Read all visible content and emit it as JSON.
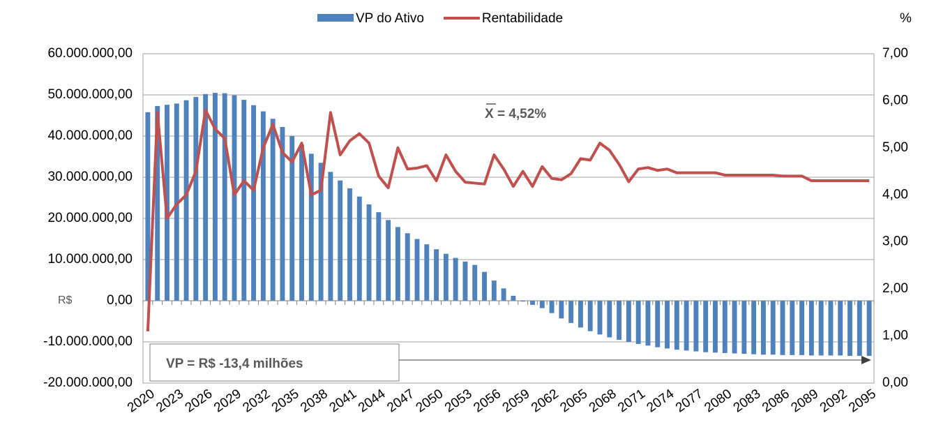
{
  "chart_data": {
    "type": "bar_line",
    "legend_position": "top",
    "y_axis_label": "R$",
    "y2_axis_label": "%",
    "annotations": [
      "X = 4,52%",
      "VP = R$ -13,4 milhões"
    ],
    "grid": true,
    "categories": [
      "2020",
      null,
      null,
      "2023",
      null,
      null,
      "2026",
      null,
      null,
      "2029",
      null,
      null,
      "2032",
      null,
      null,
      "2035",
      null,
      null,
      "2038",
      null,
      null,
      "2041",
      null,
      null,
      "2044",
      null,
      null,
      "2047",
      null,
      null,
      "2050",
      null,
      null,
      "2053",
      null,
      null,
      "2056",
      null,
      null,
      "2059",
      null,
      null,
      "2062",
      null,
      null,
      "2065",
      null,
      null,
      "2068",
      null,
      null,
      "2071",
      null,
      null,
      "2074",
      null,
      null,
      "2077",
      null,
      null,
      "2080",
      null,
      null,
      "2083",
      null,
      null,
      "2086",
      null,
      null,
      "2089",
      null,
      null,
      "2092",
      null,
      null,
      "2095"
    ],
    "ylim": [
      -20000000,
      60000000
    ],
    "yticks": [
      {
        "value": -20000000,
        "label": "-20.000.000,00"
      },
      {
        "value": -10000000,
        "label": "-10.000.000,00"
      },
      {
        "value": 0,
        "label": "0,00"
      },
      {
        "value": 10000000,
        "label": "10.000.000,00"
      },
      {
        "value": 20000000,
        "label": "20.000.000,00"
      },
      {
        "value": 30000000,
        "label": "30.000.000,00"
      },
      {
        "value": 40000000,
        "label": "40.000.000,00"
      },
      {
        "value": 50000000,
        "label": "50.000.000,00"
      },
      {
        "value": 60000000,
        "label": "60.000.000,00"
      }
    ],
    "y2lim": [
      0,
      7
    ],
    "y2ticks": [
      {
        "value": 0,
        "label": "0,00"
      },
      {
        "value": 1,
        "label": "1,00"
      },
      {
        "value": 2,
        "label": "2,00"
      },
      {
        "value": 3,
        "label": "3,00"
      },
      {
        "value": 4,
        "label": "4,00"
      },
      {
        "value": 5,
        "label": "5,00"
      },
      {
        "value": 6,
        "label": "6,00"
      },
      {
        "value": 7,
        "label": "7,00"
      }
    ],
    "series": [
      {
        "name": "VP do Ativo",
        "type": "bar",
        "color": "#4f81bd",
        "values": [
          45800000,
          47300000,
          47600000,
          47900000,
          48700000,
          49500000,
          50200000,
          50500000,
          50400000,
          49900000,
          48800000,
          47500000,
          46000000,
          44200000,
          42200000,
          40000000,
          37900000,
          35700000,
          33500000,
          31300000,
          29200000,
          27300000,
          25300000,
          23400000,
          21500000,
          19600000,
          17900000,
          16400000,
          15000000,
          13700000,
          12500000,
          11400000,
          10400000,
          9500000,
          8700000,
          7000000,
          4900000,
          3000000,
          1200000,
          -200000,
          -1000000,
          -1800000,
          -3000000,
          -4300000,
          -5400000,
          -6500000,
          -7400000,
          -8200000,
          -8900000,
          -9500000,
          -10000000,
          -10500000,
          -10900000,
          -11300000,
          -11600000,
          -11900000,
          -12100000,
          -12300000,
          -12500000,
          -12600000,
          -12700000,
          -12800000,
          -12900000,
          -13000000,
          -13100000,
          -13100000,
          -13200000,
          -13200000,
          -13200000,
          -13300000,
          -13300000,
          -13300000,
          -13300000,
          -13400000,
          -13400000,
          -13400000
        ]
      },
      {
        "name": "Rentabilidade",
        "type": "line",
        "axis": "y2",
        "color": "#c0504d",
        "values": [
          1.1,
          5.75,
          3.5,
          3.8,
          4.0,
          4.5,
          5.8,
          5.4,
          5.2,
          4.0,
          4.3,
          4.1,
          5.0,
          5.5,
          4.9,
          4.7,
          5.1,
          4.0,
          4.1,
          5.75,
          4.85,
          5.15,
          5.3,
          5.1,
          4.4,
          4.15,
          5.0,
          4.55,
          4.57,
          4.62,
          4.3,
          4.85,
          4.5,
          4.27,
          4.25,
          4.23,
          4.85,
          4.55,
          4.18,
          4.5,
          4.18,
          4.6,
          4.35,
          4.32,
          4.45,
          4.77,
          4.74,
          5.1,
          4.95,
          4.65,
          4.28,
          4.55,
          4.58,
          4.52,
          4.55,
          4.47,
          4.47,
          4.47,
          4.47,
          4.47,
          4.42,
          4.42,
          4.42,
          4.42,
          4.42,
          4.42,
          4.4,
          4.4,
          4.4,
          4.3,
          4.3,
          4.3,
          4.3,
          4.3,
          4.3,
          4.3
        ]
      }
    ]
  }
}
